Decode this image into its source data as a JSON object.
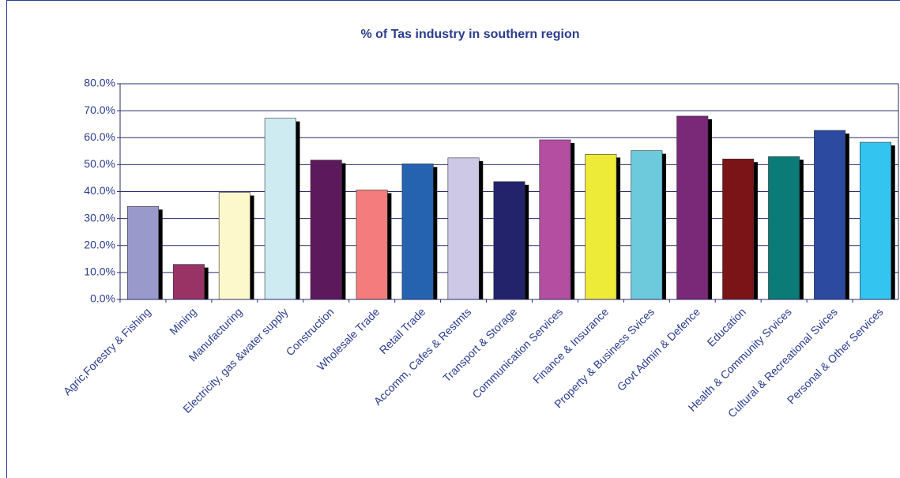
{
  "chart_data": {
    "type": "bar",
    "title": "% of Tas industry in southern region",
    "categories": [
      "Agric,Forestry & Fishing",
      "Mining",
      "Manufacturing",
      "Electricity, gas &water supply",
      "Construction",
      "Wholesale Trade",
      "Retail Trade",
      "Accomm, Cafes & Restmts",
      "Transport & Storage",
      "Communication Services",
      "Finance & Insurance",
      "Property & Business Svices",
      "Govt Admin & Defence",
      "Education",
      "Health & Community Srvices",
      "Cultural & Recreational Svices",
      "Personal & Other Services"
    ],
    "values": [
      34.5,
      13,
      39.7,
      67.2,
      51.7,
      40.6,
      50.3,
      52.5,
      43.7,
      59.2,
      53.8,
      55.2,
      68,
      52.1,
      53,
      62.7,
      58.3
    ],
    "colors": [
      "#9999cc",
      "#993366",
      "#fcf8cc",
      "#cdebf0",
      "#5c1a5c",
      "#f47c7c",
      "#2563b0",
      "#ccc8e6",
      "#23236b",
      "#b44ea0",
      "#eeea38",
      "#6ccadc",
      "#7a2878",
      "#7b1416",
      "#0b7b78",
      "#2b4aa0",
      "#33c4ef"
    ],
    "ylim": [
      0,
      80
    ],
    "yticks": [
      {
        "value": 0,
        "label": "0.0%"
      },
      {
        "value": 10,
        "label": "10.0%"
      },
      {
        "value": 20,
        "label": "20.0%"
      },
      {
        "value": 30,
        "label": "30.0%"
      },
      {
        "value": 40,
        "label": "40.0%"
      },
      {
        "value": 50,
        "label": "50.0%"
      },
      {
        "value": 60,
        "label": "60.0%"
      },
      {
        "value": 70,
        "label": "70.0%"
      },
      {
        "value": 80,
        "label": "80.0%"
      }
    ],
    "grid": true
  }
}
